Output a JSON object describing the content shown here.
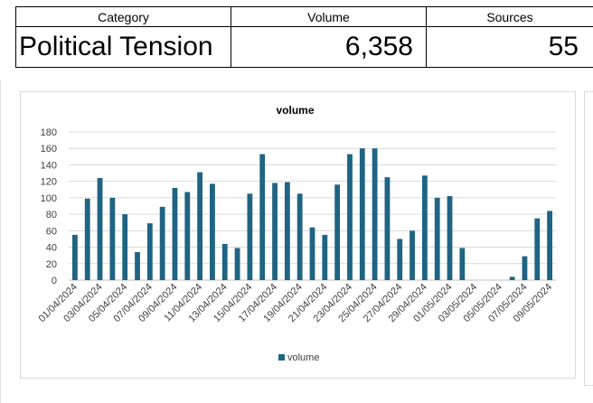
{
  "summary": {
    "headers": {
      "category": "Category",
      "volume": "Volume",
      "sources": "Sources"
    },
    "row": {
      "category": "Political Tension",
      "volume": "6,358",
      "sources": "55"
    }
  },
  "chart_data": {
    "type": "bar",
    "title": "volume",
    "xlabel": "",
    "ylabel": "",
    "ylim": [
      0,
      180
    ],
    "yticks": [
      0,
      20,
      40,
      60,
      80,
      100,
      120,
      140,
      160,
      180
    ],
    "grid": true,
    "legend_position": "bottom",
    "bar_color": "#1f6482",
    "categories": [
      "01/04/2024",
      "02/04/2024",
      "03/04/2024",
      "04/04/2024",
      "05/04/2024",
      "06/04/2024",
      "07/04/2024",
      "08/04/2024",
      "09/04/2024",
      "10/04/2024",
      "11/04/2024",
      "12/04/2024",
      "13/04/2024",
      "14/04/2024",
      "15/04/2024",
      "16/04/2024",
      "17/04/2024",
      "18/04/2024",
      "19/04/2024",
      "20/04/2024",
      "21/04/2024",
      "22/04/2024",
      "23/04/2024",
      "24/04/2024",
      "25/04/2024",
      "26/04/2024",
      "27/04/2024",
      "28/04/2024",
      "29/04/2024",
      "30/04/2024",
      "01/05/2024",
      "02/05/2024",
      "03/05/2024",
      "04/05/2024",
      "05/05/2024",
      "06/05/2024",
      "07/05/2024",
      "08/05/2024",
      "09/05/2024"
    ],
    "tick_labels": [
      "01/04/2024",
      "03/04/2024",
      "05/04/2024",
      "07/04/2024",
      "09/04/2024",
      "11/04/2024",
      "13/04/2024",
      "15/04/2024",
      "17/04/2024",
      "19/04/2024",
      "21/04/2024",
      "23/04/2024",
      "25/04/2024",
      "27/04/2024",
      "29/04/2024",
      "01/05/2024",
      "03/05/2024",
      "05/05/2024",
      "07/05/2024",
      "09/05/2024"
    ],
    "series": [
      {
        "name": "volume",
        "values": [
          55,
          99,
          124,
          100,
          80,
          34,
          69,
          89,
          112,
          107,
          131,
          117,
          44,
          39,
          105,
          153,
          118,
          119,
          105,
          64,
          55,
          116,
          153,
          160,
          160,
          125,
          50,
          60,
          127,
          100,
          102,
          39,
          0,
          0,
          0,
          4,
          29,
          75,
          84
        ]
      }
    ]
  }
}
